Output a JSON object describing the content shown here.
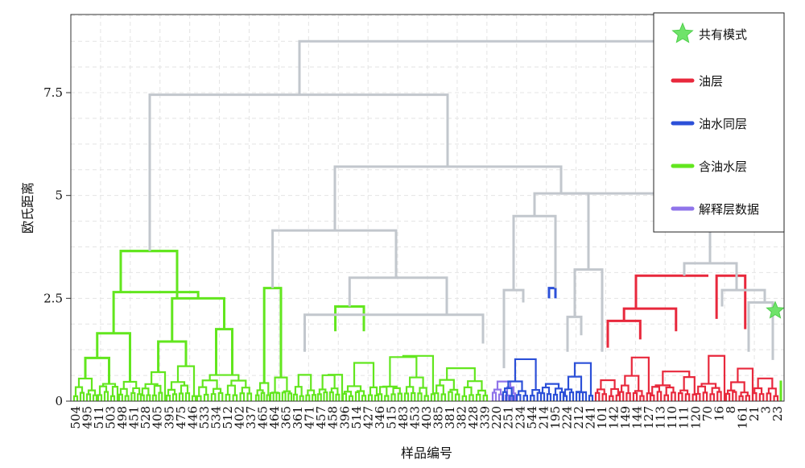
{
  "chart_data": {
    "type": "dendrogram",
    "xlabel": "样品编号",
    "ylabel": "欧氏距离",
    "ylim": [
      0,
      9.4
    ],
    "yticks": [
      0,
      2.5,
      5,
      7.5
    ],
    "ytick_labels": [
      "0",
      "2.5",
      "5",
      "7.5"
    ],
    "grid": true,
    "legend_position": "top-right",
    "legend": [
      {
        "label": "共有模式",
        "symbol": "star",
        "color": "#6fe36a"
      },
      {
        "label": "油层",
        "symbol": "line",
        "color": "#e8283c"
      },
      {
        "label": "油水同层",
        "symbol": "line",
        "color": "#2c50d8"
      },
      {
        "label": "含油水层",
        "symbol": "line",
        "color": "#62e61e"
      },
      {
        "label": "解释层数据",
        "symbol": "line",
        "color": "#8f74ea"
      }
    ],
    "sample_labels": [
      "504",
      "495",
      "511",
      "503",
      "498",
      "451",
      "528",
      "405",
      "395",
      "475",
      "446",
      "533",
      "534",
      "512",
      "402",
      "337",
      "465",
      "464",
      "365",
      "361",
      "471",
      "457",
      "458",
      "396",
      "514",
      "427",
      "346",
      "515",
      "483",
      "453",
      "403",
      "385",
      "381",
      "382",
      "428",
      "339",
      "220",
      "251",
      "234",
      "544",
      "214",
      "195",
      "224",
      "212",
      "241",
      "101",
      "142",
      "149",
      "144",
      "127",
      "113",
      "110",
      "111",
      "120",
      "70",
      "16",
      "8",
      "161",
      "21",
      "3",
      "23"
    ],
    "clusters": [
      {
        "name": "含油水层",
        "color": "#62e61e",
        "merge_height": 3.65
      },
      {
        "name": "解释层数据",
        "color": "#8f74ea",
        "merge_height": 0.8
      },
      {
        "name": "油水同层",
        "color": "#2c50d8",
        "merge_height": 2.75
      },
      {
        "name": "油层",
        "color": "#e8283c",
        "merge_height": 3.05
      }
    ],
    "merge_heights": {
      "root": 8.75,
      "left_group": 7.45,
      "mid_group": 5.7,
      "right_group": 5.05,
      "green_sub_b": 4.15,
      "green_sub_c": 3.0,
      "grey_sub": 4.5,
      "red_plus": 3.35,
      "star_height": 2.2
    }
  }
}
